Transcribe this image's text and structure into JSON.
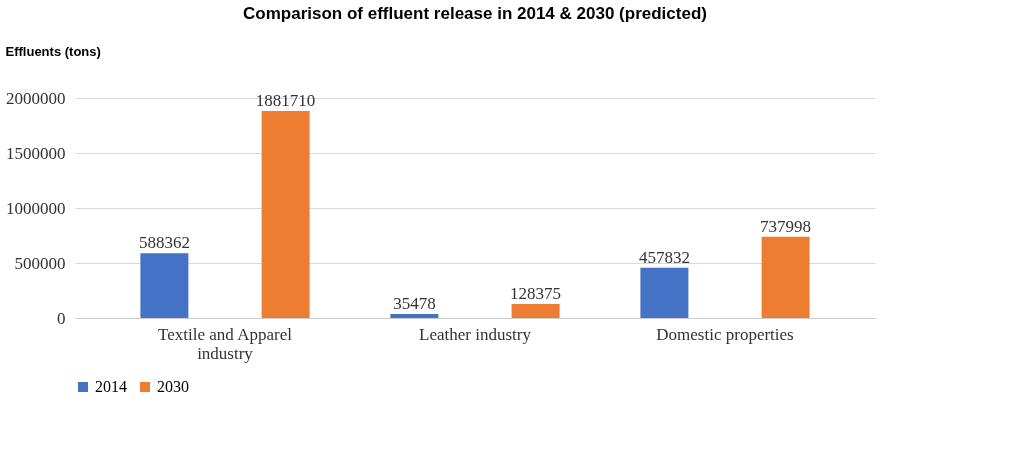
{
  "chart_data": {
    "type": "bar",
    "title": "Comparison of effluent release in 2014 & 2030 (predicted)",
    "ylabel": "Effluents (tons)",
    "categories": [
      "Textile and Apparel industry",
      "Leather industry",
      "Domestic properties"
    ],
    "series": [
      {
        "name": "2014",
        "color": "#4472c4",
        "values": [
          588362,
          35478,
          457832
        ]
      },
      {
        "name": "2030",
        "color": "#ed7d31",
        "values": [
          1881710,
          128375,
          737998
        ]
      }
    ],
    "ylim": [
      0,
      2000000
    ],
    "yticks": [
      0,
      500000,
      1000000,
      1500000,
      2000000
    ],
    "grid": "y",
    "legend": "bottom",
    "data_labels": true
  }
}
